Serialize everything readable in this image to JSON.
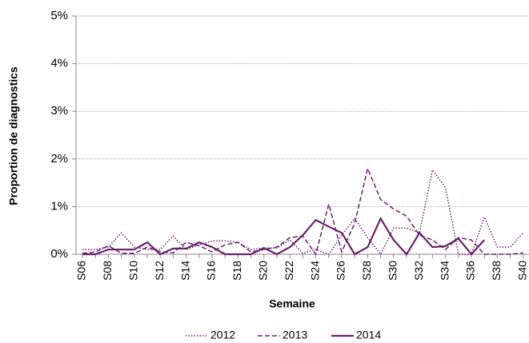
{
  "chart_data": {
    "type": "line",
    "y_label": "Proportion de diagnostics",
    "x_label": "Semaine",
    "categories": [
      "S06",
      null,
      "S08",
      null,
      "S10",
      null,
      "S12",
      null,
      "S14",
      null,
      "S16",
      null,
      "S18",
      null,
      "S20",
      null,
      "S22",
      null,
      "S24",
      null,
      "S26",
      null,
      "S28",
      null,
      "S30",
      null,
      "S32",
      null,
      "S34",
      null,
      "S36",
      null,
      "S38",
      null,
      "S40"
    ],
    "series": [
      {
        "name": "2012",
        "color": "#6b1f6f",
        "style": "dotted",
        "values": [
          0.1,
          0.1,
          0.15,
          0.45,
          0.15,
          0.1,
          0.1,
          0.38,
          0.1,
          0.2,
          0.28,
          0.28,
          0.25,
          0.1,
          0.13,
          0.13,
          0.3,
          0.02,
          0.1,
          0,
          0.4,
          0.75,
          0.35,
          0,
          0.55,
          0.55,
          0.45,
          1.77,
          1.4,
          0,
          0,
          0.78,
          0.15,
          0.15,
          0.45
        ]
      },
      {
        "name": "2013",
        "color": "#6b1f6f",
        "style": "dashed",
        "values": [
          0.02,
          0.05,
          0.18,
          0.02,
          0.02,
          0.15,
          0.05,
          0.03,
          0.25,
          0.18,
          0.05,
          0.2,
          0.25,
          0.05,
          0.1,
          0.15,
          0.35,
          0.38,
          0,
          1.05,
          0.05,
          0.65,
          1.8,
          1.15,
          0.95,
          0.8,
          0.4,
          0.3,
          0.1,
          0.35,
          0.3,
          0,
          0,
          0,
          0.03
        ]
      },
      {
        "name": "2014",
        "color": "#6b1f6f",
        "style": "solid",
        "values": [
          0,
          0,
          0.1,
          0.1,
          0.1,
          0.25,
          0,
          0.12,
          0.12,
          0.25,
          0.15,
          0,
          0,
          0,
          0.13,
          0,
          0.15,
          0.4,
          0.72,
          0.58,
          0.45,
          0,
          0.15,
          0.75,
          0.3,
          0,
          0.45,
          0.15,
          0.17,
          0.33,
          0,
          0.3,
          null,
          null,
          null
        ]
      }
    ],
    "ylim": [
      0,
      5
    ],
    "yticks": [
      {
        "value": 0,
        "label": "0%"
      },
      {
        "value": 1,
        "label": "1%"
      },
      {
        "value": 2,
        "label": "2%"
      },
      {
        "value": 3,
        "label": "3%"
      },
      {
        "value": 4,
        "label": "4%"
      },
      {
        "value": 5,
        "label": "5%"
      }
    ],
    "grid": true,
    "legend": "bottom"
  }
}
